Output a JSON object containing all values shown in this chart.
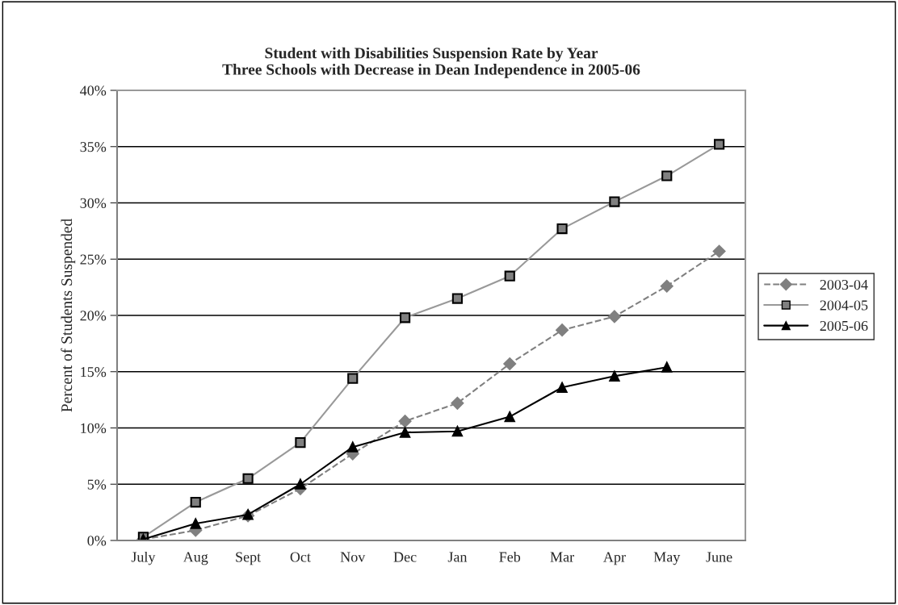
{
  "chart_data": {
    "type": "line",
    "title": "Student with Disabilities Suspension Rate by Year\nThree Schools with Decrease in Dean Independence in 2005-06",
    "ylabel": "Percent of Students Suspended",
    "categories": [
      "July",
      "Aug",
      "Sept",
      "Oct",
      "Nov",
      "Dec",
      "Jan",
      "Feb",
      "Mar",
      "Apr",
      "May",
      "June"
    ],
    "series": [
      {
        "name": "2003-04",
        "color": "#808080",
        "marker": "diamond",
        "line_style": "dashed",
        "values": [
          0.1,
          0.9,
          2.2,
          4.6,
          7.7,
          10.6,
          12.2,
          15.7,
          18.7,
          19.9,
          22.6,
          25.7
        ]
      },
      {
        "name": "2004-05",
        "color": "#999999",
        "marker": "square",
        "line_style": "solid",
        "values": [
          0.3,
          3.4,
          5.5,
          8.7,
          14.4,
          19.8,
          21.5,
          23.5,
          27.7,
          30.1,
          32.4,
          35.2
        ]
      },
      {
        "name": "2005-06",
        "color": "#000000",
        "marker": "triangle",
        "line_style": "solid",
        "values": [
          0.1,
          1.5,
          2.3,
          5.0,
          8.3,
          9.6,
          9.7,
          11.0,
          13.6,
          14.6,
          15.4,
          null
        ]
      }
    ],
    "ylim": [
      0,
      40
    ],
    "yticks": [
      {
        "value": 0,
        "label": "0%"
      },
      {
        "value": 5,
        "label": "5%"
      },
      {
        "value": 10,
        "label": "10%"
      },
      {
        "value": 15,
        "label": "15%"
      },
      {
        "value": 20,
        "label": "20%"
      },
      {
        "value": 25,
        "label": "25%"
      },
      {
        "value": 30,
        "label": "30%"
      },
      {
        "value": 35,
        "label": "35%"
      },
      {
        "value": 40,
        "label": "40%"
      }
    ],
    "grid": "y",
    "legend": "right"
  }
}
